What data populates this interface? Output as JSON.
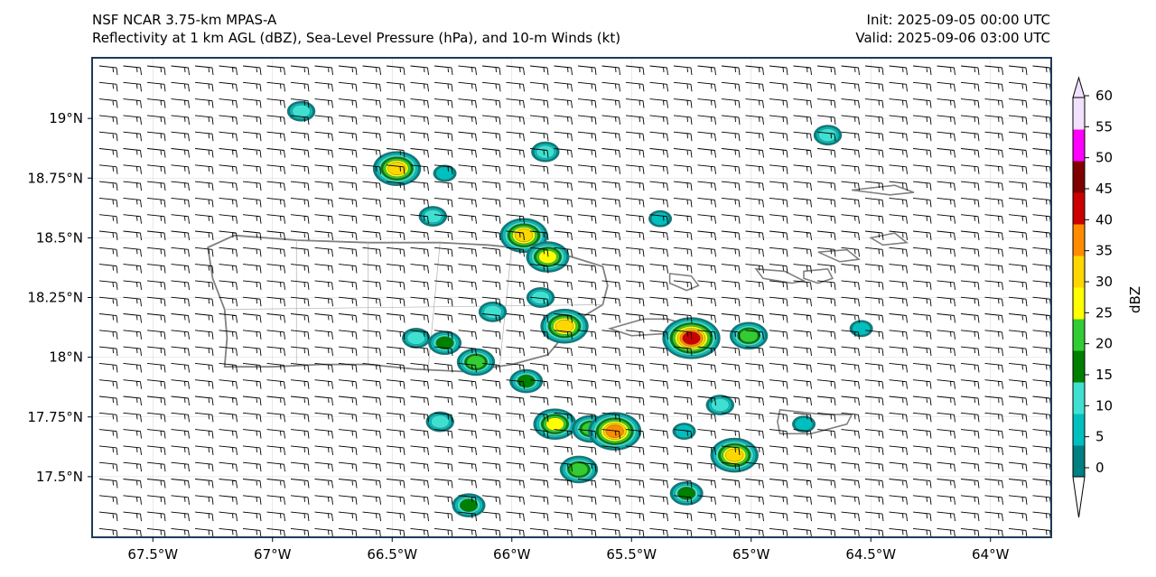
{
  "header": {
    "left_line1": "NSF NCAR 3.75-km MPAS-A",
    "left_line2": "Reflectivity at 1 km AGL (dBZ), Sea-Level Pressure (hPa), and 10-m Winds (kt)",
    "right_line1": "Init: 2025-09-05 00:00 UTC",
    "right_line2": "Valid: 2025-09-06 03:00 UTC"
  },
  "map": {
    "lon_range": [
      -67.75,
      -63.75
    ],
    "lat_range": [
      17.25,
      19.25
    ],
    "x_ticks": [
      {
        "lon": -67.5,
        "label": "67.5°W"
      },
      {
        "lon": -67.0,
        "label": "67°W"
      },
      {
        "lon": -66.5,
        "label": "66.5°W"
      },
      {
        "lon": -66.0,
        "label": "66°W"
      },
      {
        "lon": -65.5,
        "label": "65.5°W"
      },
      {
        "lon": -65.0,
        "label": "65°W"
      },
      {
        "lon": -64.5,
        "label": "64.5°W"
      },
      {
        "lon": -64.0,
        "label": "64°W"
      }
    ],
    "y_ticks": [
      {
        "lat": 19.0,
        "label": "19°N"
      },
      {
        "lat": 18.75,
        "label": "18.75°N"
      },
      {
        "lat": 18.5,
        "label": "18.5°N"
      },
      {
        "lat": 18.25,
        "label": "18.25°N"
      },
      {
        "lat": 18.0,
        "label": "18°N"
      },
      {
        "lat": 17.75,
        "label": "17.75°N"
      },
      {
        "lat": 17.5,
        "label": "17.5°N"
      }
    ],
    "wind_direction": "easterly",
    "coastline_color": "#808080",
    "cells": [
      {
        "lon": -66.88,
        "lat": 19.03,
        "max_dbz": 10
      },
      {
        "lon": -66.48,
        "lat": 18.79,
        "max_dbz": 30
      },
      {
        "lon": -66.28,
        "lat": 18.77,
        "max_dbz": 5
      },
      {
        "lon": -66.33,
        "lat": 18.59,
        "max_dbz": 10
      },
      {
        "lon": -65.95,
        "lat": 18.51,
        "max_dbz": 30
      },
      {
        "lon": -65.85,
        "lat": 18.42,
        "max_dbz": 25
      },
      {
        "lon": -65.86,
        "lat": 18.86,
        "max_dbz": 10
      },
      {
        "lon": -65.38,
        "lat": 18.58,
        "max_dbz": 5
      },
      {
        "lon": -64.68,
        "lat": 18.93,
        "max_dbz": 10
      },
      {
        "lon": -65.88,
        "lat": 18.25,
        "max_dbz": 10
      },
      {
        "lon": -66.08,
        "lat": 18.19,
        "max_dbz": 10
      },
      {
        "lon": -65.78,
        "lat": 18.13,
        "max_dbz": 30
      },
      {
        "lon": -65.25,
        "lat": 18.08,
        "max_dbz": 40
      },
      {
        "lon": -65.01,
        "lat": 18.09,
        "max_dbz": 20
      },
      {
        "lon": -66.4,
        "lat": 18.08,
        "max_dbz": 10
      },
      {
        "lon": -66.28,
        "lat": 18.06,
        "max_dbz": 15
      },
      {
        "lon": -66.15,
        "lat": 17.98,
        "max_dbz": 20
      },
      {
        "lon": -65.94,
        "lat": 17.9,
        "max_dbz": 15
      },
      {
        "lon": -65.82,
        "lat": 17.72,
        "max_dbz": 25
      },
      {
        "lon": -65.67,
        "lat": 17.7,
        "max_dbz": 20
      },
      {
        "lon": -65.57,
        "lat": 17.69,
        "max_dbz": 35
      },
      {
        "lon": -66.3,
        "lat": 17.73,
        "max_dbz": 10
      },
      {
        "lon": -65.72,
        "lat": 17.53,
        "max_dbz": 20
      },
      {
        "lon": -65.28,
        "lat": 17.69,
        "max_dbz": 5
      },
      {
        "lon": -65.13,
        "lat": 17.8,
        "max_dbz": 10
      },
      {
        "lon": -65.07,
        "lat": 17.59,
        "max_dbz": 30
      },
      {
        "lon": -65.27,
        "lat": 17.43,
        "max_dbz": 15
      },
      {
        "lon": -66.18,
        "lat": 17.38,
        "max_dbz": 15
      },
      {
        "lon": -64.54,
        "lat": 18.12,
        "max_dbz": 5
      },
      {
        "lon": -64.78,
        "lat": 17.72,
        "max_dbz": 5
      }
    ]
  },
  "colorbar": {
    "label": "dBZ",
    "ticks": [
      0,
      5,
      10,
      15,
      20,
      25,
      30,
      35,
      40,
      45,
      50,
      55,
      60
    ],
    "colors": [
      "#008080",
      "#00bfbf",
      "#40e0d0",
      "#008000",
      "#32cd32",
      "#ffff00",
      "#ffd700",
      "#ff8c00",
      "#cc0000",
      "#800000",
      "#ff00ff",
      "#f1e1ff"
    ]
  }
}
